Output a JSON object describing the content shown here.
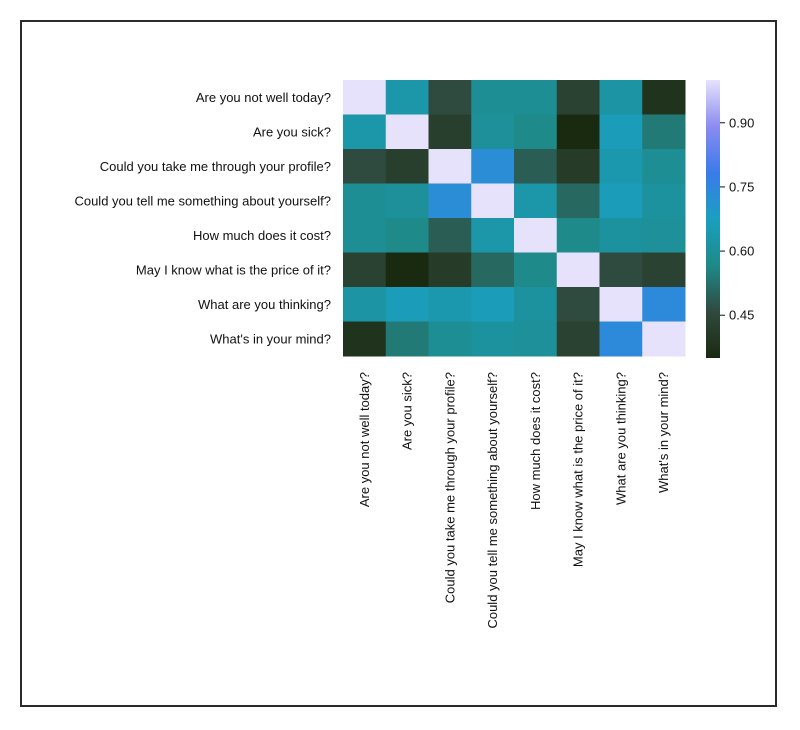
{
  "chart_data": {
    "type": "heatmap",
    "title": "",
    "xlabel": "",
    "ylabel": "",
    "labels": [
      "Are you not well today?",
      "Are you sick?",
      "Could you take me through your profile?",
      "Could you tell me something about yourself?",
      "How much does it cost?",
      "May I know what is the price of it?",
      "What are you thinking?",
      "What's in your mind?"
    ],
    "matrix": [
      [
        1.0,
        0.63,
        0.46,
        0.59,
        0.59,
        0.43,
        0.62,
        0.38
      ],
      [
        0.63,
        1.0,
        0.42,
        0.6,
        0.57,
        0.35,
        0.66,
        0.54
      ],
      [
        0.46,
        0.42,
        1.0,
        0.73,
        0.49,
        0.41,
        0.64,
        0.59
      ],
      [
        0.59,
        0.6,
        0.73,
        1.0,
        0.63,
        0.51,
        0.66,
        0.61
      ],
      [
        0.59,
        0.57,
        0.49,
        0.63,
        1.0,
        0.57,
        0.61,
        0.6
      ],
      [
        0.43,
        0.35,
        0.41,
        0.51,
        0.57,
        1.0,
        0.46,
        0.43
      ],
      [
        0.62,
        0.66,
        0.64,
        0.66,
        0.61,
        0.46,
        1.0,
        0.74
      ],
      [
        0.38,
        0.54,
        0.59,
        0.61,
        0.6,
        0.43,
        0.74,
        1.0
      ]
    ],
    "colorbar": {
      "min": 0.35,
      "max": 1.0,
      "ticks": [
        "0.45",
        "0.60",
        "0.75",
        "0.90"
      ],
      "colormap": [
        "#1a2a10",
        "#2f4a3e",
        "#1e8a88",
        "#1a9fc0",
        "#3a7bea",
        "#8b8cf0",
        "#e6e2fb"
      ]
    }
  }
}
